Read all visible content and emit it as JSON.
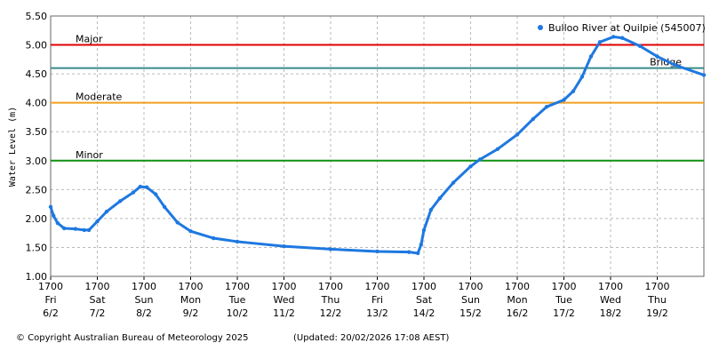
{
  "chart_data": {
    "type": "line",
    "y_label": "Water Level (m)",
    "legend_position": "top-right",
    "grid": true,
    "xlim": [
      0,
      14
    ],
    "ylim": [
      1.0,
      5.5
    ],
    "yticks": [
      {
        "value": 1.0,
        "label": "1.00"
      },
      {
        "value": 1.5,
        "label": "1.50"
      },
      {
        "value": 2.0,
        "label": "2.00"
      },
      {
        "value": 2.5,
        "label": "2.50"
      },
      {
        "value": 3.0,
        "label": "3.00"
      },
      {
        "value": 3.5,
        "label": "3.50"
      },
      {
        "value": 4.0,
        "label": "4.00"
      },
      {
        "value": 4.5,
        "label": "4.50"
      },
      {
        "value": 5.0,
        "label": "5.00"
      },
      {
        "value": 5.5,
        "label": "5.50"
      }
    ],
    "xticks": [
      {
        "value": 0,
        "label": [
          "1700",
          "Fri",
          "6/2"
        ]
      },
      {
        "value": 1,
        "label": [
          "1700",
          "Sat",
          "7/2"
        ]
      },
      {
        "value": 2,
        "label": [
          "1700",
          "Sun",
          "8/2"
        ]
      },
      {
        "value": 3,
        "label": [
          "1700",
          "Mon",
          "9/2"
        ]
      },
      {
        "value": 4,
        "label": [
          "1700",
          "Tue",
          "10/2"
        ]
      },
      {
        "value": 5,
        "label": [
          "1700",
          "Wed",
          "11/2"
        ]
      },
      {
        "value": 6,
        "label": [
          "1700",
          "Thu",
          "12/2"
        ]
      },
      {
        "value": 7,
        "label": [
          "1700",
          "Fri",
          "13/2"
        ]
      },
      {
        "value": 8,
        "label": [
          "1700",
          "Sat",
          "14/2"
        ]
      },
      {
        "value": 9,
        "label": [
          "1700",
          "Sun",
          "15/2"
        ]
      },
      {
        "value": 10,
        "label": [
          "1700",
          "Mon",
          "16/2"
        ]
      },
      {
        "value": 11,
        "label": [
          "1700",
          "Tue",
          "17/2"
        ]
      },
      {
        "value": 12,
        "label": [
          "1700",
          "Wed",
          "18/2"
        ]
      },
      {
        "value": 13,
        "label": [
          "1700",
          "Thu",
          "19/2"
        ]
      }
    ],
    "thresholds": [
      {
        "label": "Major",
        "value": 5.0,
        "color": "#e00000"
      },
      {
        "label": "Bridge",
        "value": 4.6,
        "color": "#3a8a8a"
      },
      {
        "label": "Moderate",
        "value": 4.0,
        "color": "#f0a020"
      },
      {
        "label": "Minor",
        "value": 3.0,
        "color": "#109010"
      }
    ],
    "series": [
      {
        "name": "Bulloo River at Quilpie (545007)",
        "color": "#1e78e0",
        "x": [
          0,
          0.06,
          0.15,
          0.29,
          0.53,
          0.72,
          0.82,
          1.0,
          1.2,
          1.49,
          1.77,
          1.92,
          2.06,
          2.25,
          2.44,
          2.72,
          3.0,
          3.49,
          4.0,
          5.0,
          6.0,
          7.0,
          7.68,
          7.87,
          7.94,
          8.0,
          8.15,
          8.34,
          8.63,
          9.0,
          9.2,
          9.58,
          10.0,
          10.34,
          10.63,
          11.0,
          11.2,
          11.39,
          11.58,
          11.77,
          12.06,
          12.25,
          12.63,
          13.0,
          13.39,
          14.0
        ],
        "values": [
          2.2,
          2.05,
          1.92,
          1.83,
          1.82,
          1.8,
          1.8,
          1.95,
          2.12,
          2.3,
          2.45,
          2.55,
          2.54,
          2.42,
          2.2,
          1.93,
          1.78,
          1.66,
          1.6,
          1.52,
          1.47,
          1.43,
          1.42,
          1.4,
          1.55,
          1.8,
          2.15,
          2.35,
          2.62,
          2.9,
          3.02,
          3.2,
          3.45,
          3.72,
          3.93,
          4.05,
          4.2,
          4.45,
          4.8,
          5.05,
          5.14,
          5.12,
          4.98,
          4.8,
          4.65,
          4.48
        ]
      }
    ]
  },
  "footer": {
    "copyright": "© Copyright Australian Bureau of Meteorology 2025",
    "updated": "(Updated: 20/02/2026 17:08 AEST)"
  }
}
